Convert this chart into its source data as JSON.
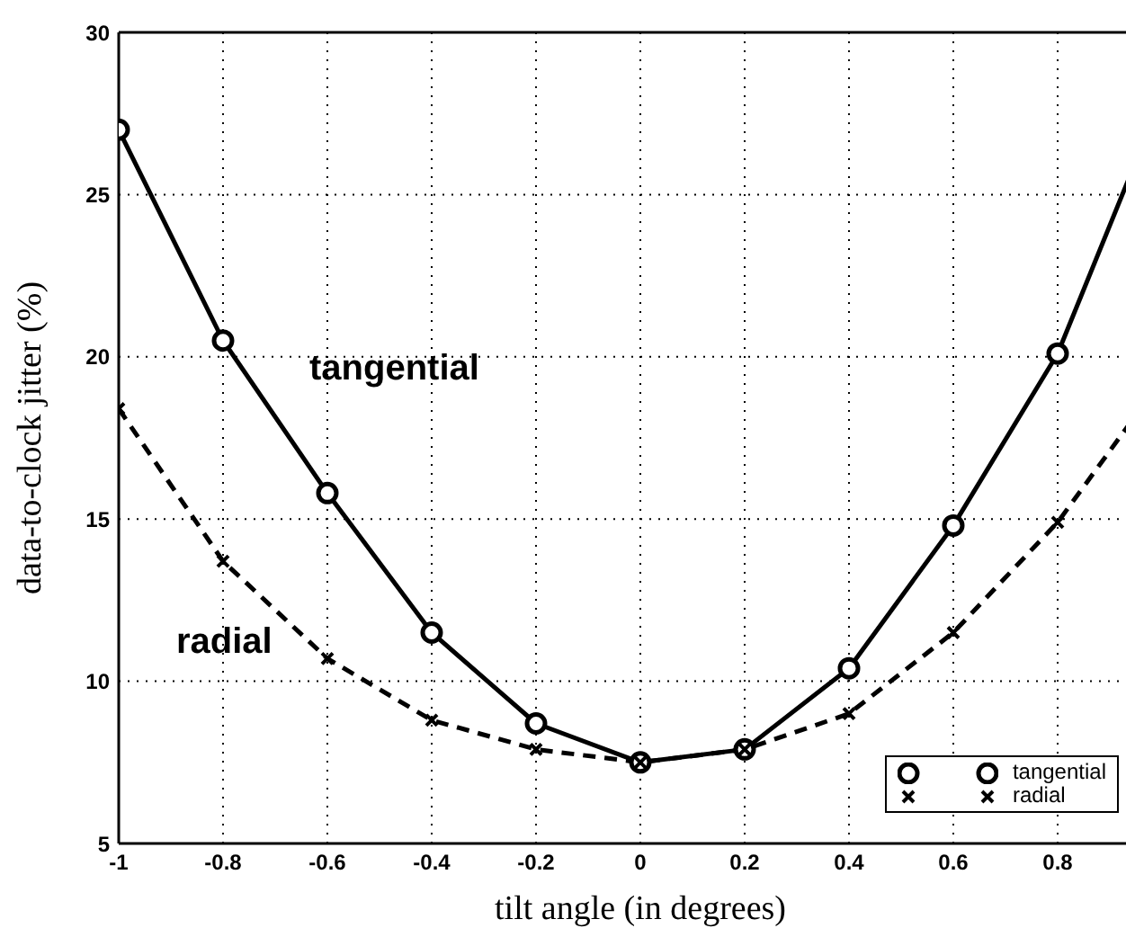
{
  "chart_data": {
    "type": "line",
    "xlabel": "tilt angle (in degrees)",
    "ylabel": "data-to-clock jitter (%)",
    "x": [
      -1,
      -0.8,
      -0.6,
      -0.4,
      -0.2,
      0,
      0.2,
      0.4,
      0.6,
      0.8,
      1
    ],
    "series": [
      {
        "name": "tangential",
        "color": "#000000",
        "marker": "circle",
        "line_style": "solid",
        "values": [
          27.0,
          20.5,
          15.8,
          11.5,
          8.7,
          7.5,
          7.9,
          10.4,
          14.8,
          20.1,
          28.0
        ]
      },
      {
        "name": "radial",
        "color": "#000000",
        "marker": "cross",
        "line_style": "dashed",
        "values": [
          18.4,
          13.7,
          10.7,
          8.8,
          7.9,
          7.5,
          7.9,
          9.0,
          11.5,
          14.9,
          19.3
        ]
      }
    ],
    "annotations": [
      "tangential",
      "radial"
    ],
    "xlim": [
      -1,
      1
    ],
    "xticks": [
      -1,
      -0.8,
      -0.6,
      -0.4,
      -0.2,
      0,
      0.2,
      0.4,
      0.6,
      0.8
    ],
    "ylim": [
      5,
      30
    ],
    "yticks": [
      5,
      10,
      15,
      20,
      25,
      30
    ],
    "grid": true,
    "legend": "bottom right"
  }
}
